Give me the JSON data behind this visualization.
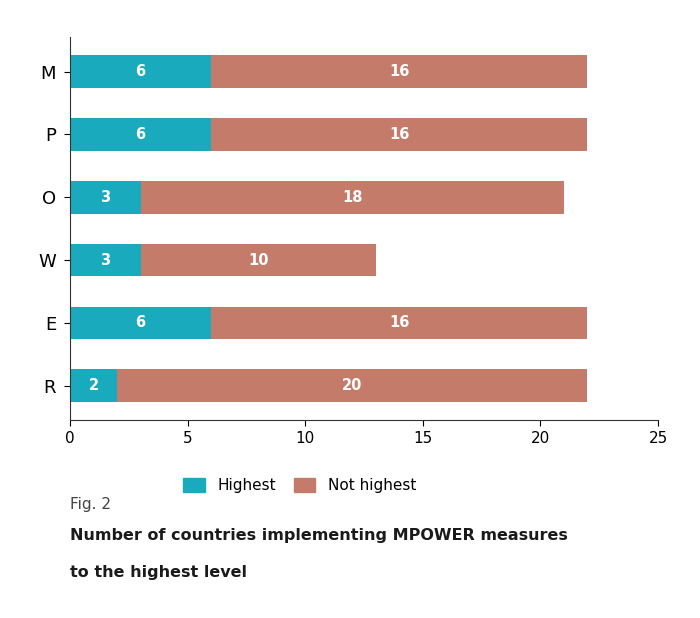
{
  "categories": [
    "M",
    "P",
    "O",
    "W",
    "E",
    "R"
  ],
  "highest": [
    6,
    6,
    3,
    3,
    6,
    2
  ],
  "not_highest": [
    16,
    16,
    18,
    10,
    16,
    20
  ],
  "highest_color": "#1aaabe",
  "not_highest_color": "#c47b6a",
  "label_color": "#ffffff",
  "label_fontsize": 10.5,
  "tick_fontsize": 11,
  "category_fontsize": 13,
  "xlim": [
    0,
    25
  ],
  "xticks": [
    0,
    5,
    10,
    15,
    20,
    25
  ],
  "legend_labels": [
    "Highest",
    "Not highest"
  ],
  "fig2_label": "Fig. 2",
  "fig2_title_line1": "Number of countries implementing MPOWER measures",
  "fig2_title_line2": "to the highest level",
  "bar_height": 0.52,
  "background_color": "#ffffff"
}
